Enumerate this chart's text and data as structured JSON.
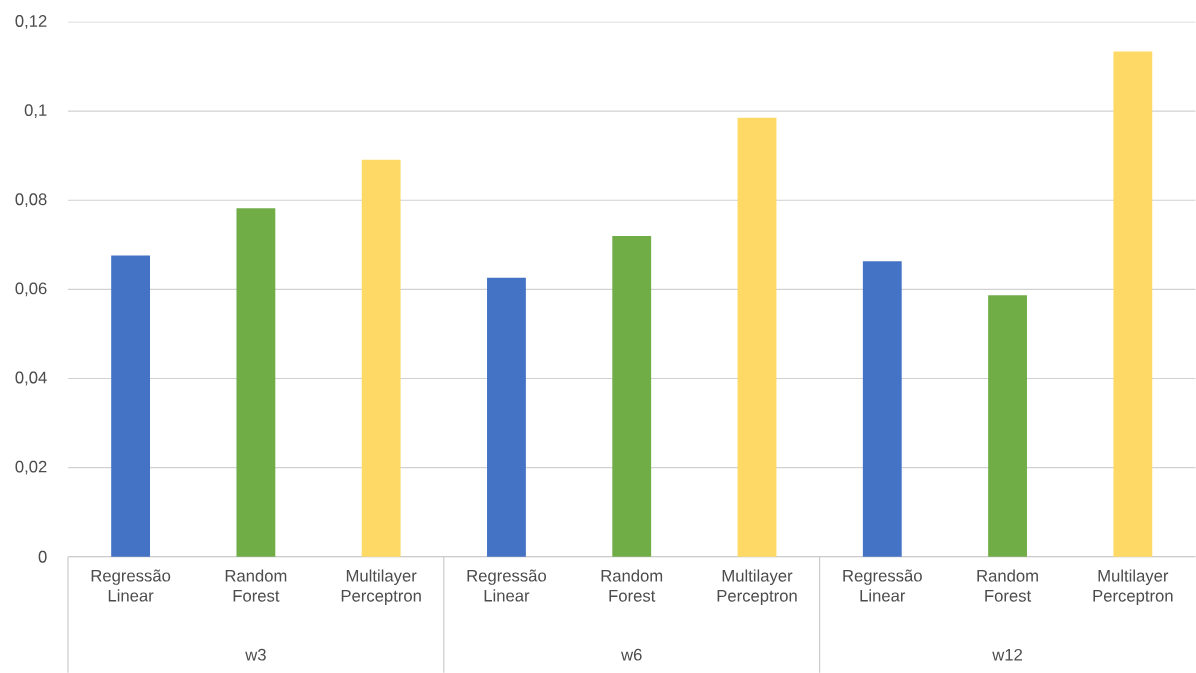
{
  "chart_data": {
    "type": "bar",
    "categories": [
      "Regressão Linear",
      "Random Forest",
      "Multilayer Perceptron",
      "Regressão Linear",
      "Random Forest",
      "Multilayer Perceptron",
      "Regressão Linear",
      "Random Forest",
      "Multilayer Perceptron"
    ],
    "values": [
      0.0676,
      0.0782,
      0.0891,
      0.0626,
      0.072,
      0.0985,
      0.0663,
      0.0587,
      0.1134
    ],
    "colors": [
      "#4472c4",
      "#70ad47",
      "#ffd966",
      "#4472c4",
      "#70ad47",
      "#ffd966",
      "#4472c4",
      "#70ad47",
      "#ffd966"
    ],
    "annotations": [
      "w3",
      "w6",
      "w12"
    ],
    "ylim": [
      0,
      0.12
    ],
    "yticks": [
      0,
      {
        "value": 0.02,
        "label": "0,02"
      },
      {
        "value": 0.04,
        "label": "0,04"
      },
      {
        "value": 0.06,
        "label": "0,06"
      },
      {
        "value": 0.08,
        "label": "0,08"
      },
      {
        "value": 0.1,
        "label": "0,1"
      },
      {
        "value": 0.12,
        "label": "0,12"
      }
    ],
    "grid": "y"
  }
}
